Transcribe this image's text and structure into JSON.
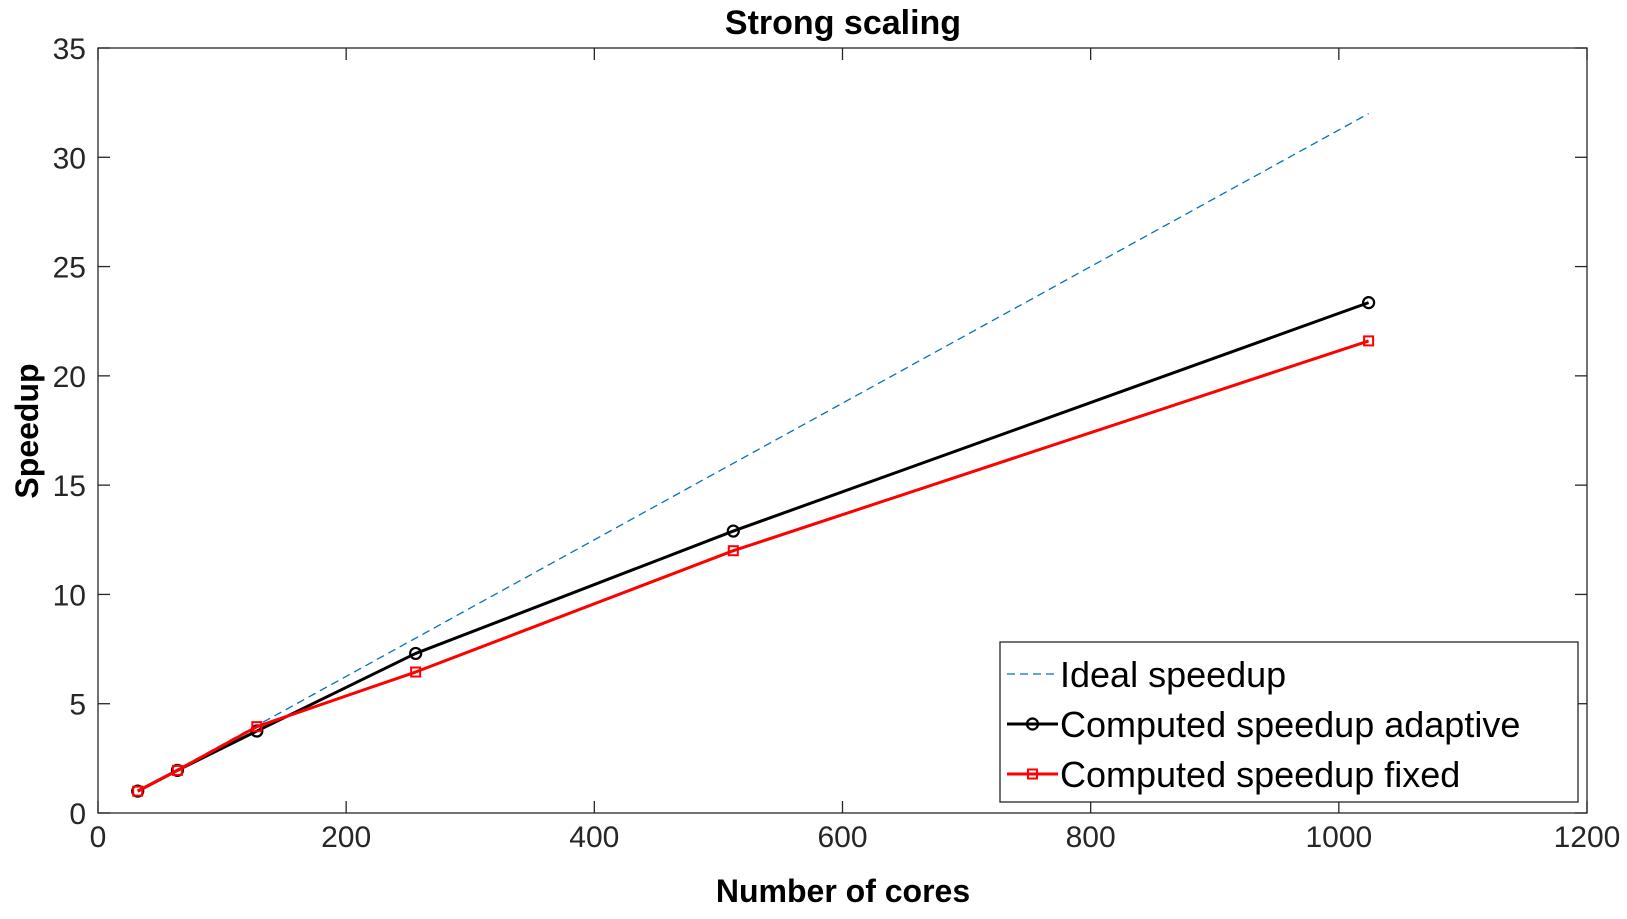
{
  "chart_data": {
    "type": "line",
    "title": "Strong scaling",
    "xlabel": "Number of cores",
    "ylabel": "Speedup",
    "xlim": [
      0,
      1200
    ],
    "ylim": [
      0,
      35
    ],
    "xticks": [
      0,
      200,
      400,
      600,
      800,
      1000,
      1200
    ],
    "yticks": [
      0,
      5,
      10,
      15,
      20,
      25,
      30,
      35
    ],
    "grid": false,
    "legend_location": "bottom-right",
    "series": [
      {
        "name": "Ideal speedup",
        "style": "dashed",
        "color": "#0072BD",
        "marker": "none",
        "x": [
          32,
          64,
          128,
          256,
          512,
          1024
        ],
        "y": [
          1,
          2,
          4,
          8,
          16,
          32
        ]
      },
      {
        "name": "Computed speedup adaptive",
        "style": "solid",
        "color": "#000000",
        "marker": "circle",
        "x": [
          32,
          64,
          128,
          256,
          512,
          1024
        ],
        "y": [
          1,
          1.95,
          3.75,
          7.3,
          12.9,
          23.35
        ]
      },
      {
        "name": "Computed speedup fixed",
        "style": "solid",
        "color": "#FF0000",
        "marker": "square",
        "x": [
          32,
          64,
          128,
          256,
          512,
          1024
        ],
        "y": [
          1,
          1.95,
          3.95,
          6.45,
          12.0,
          21.6
        ]
      }
    ]
  }
}
